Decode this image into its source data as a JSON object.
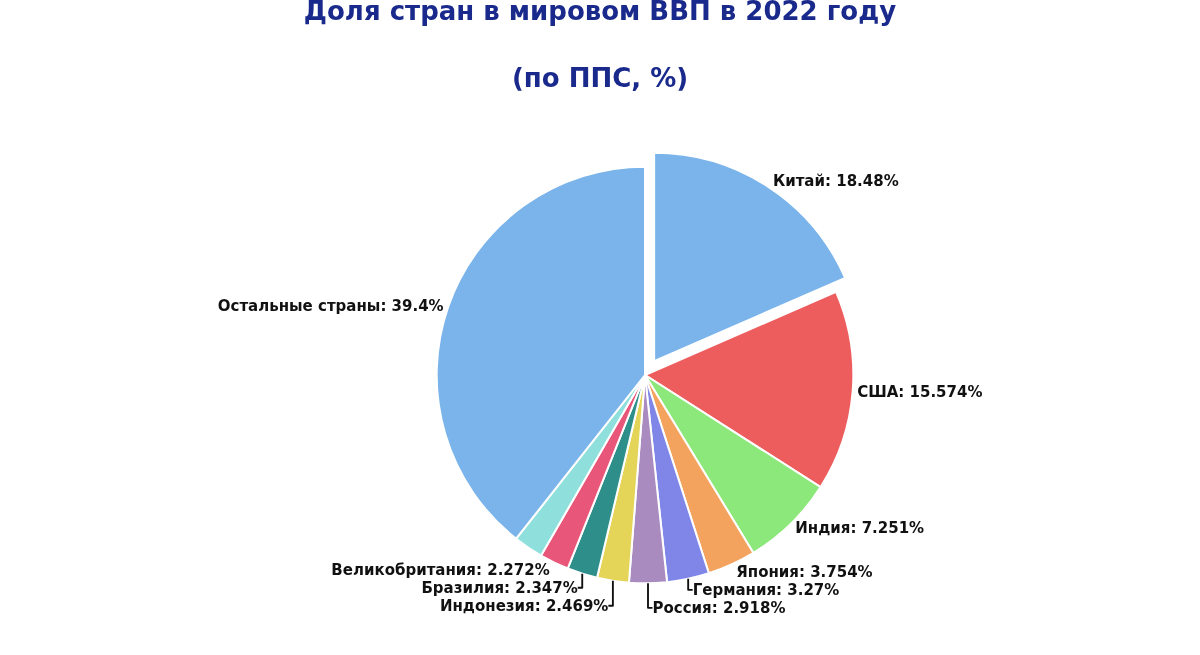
{
  "chart_data": {
    "type": "pie",
    "title": "Доля стран в мировом ВВП в 2022 году",
    "subtitle": "(по ППС, %)",
    "categories": [
      "Китай",
      "США",
      "Индия",
      "Япония",
      "Германия",
      "Россия",
      "Индонезия",
      "Бразилия",
      "Великобритания",
      null,
      "Остальные страны"
    ],
    "values": [
      18.48,
      15.574,
      7.251,
      3.754,
      3.27,
      2.918,
      2.469,
      2.347,
      2.272,
      2.3,
      39.4
    ],
    "value_labels": [
      "18.48%",
      "15.574%",
      "7.251%",
      "3.754%",
      "3.27%",
      "2.918%",
      "2.469%",
      "2.347%",
      "2.272%",
      null,
      "39.4%"
    ],
    "colors": [
      "#7ab4ea",
      "#ee5d5d",
      "#8ce87a",
      "#f4a35f",
      "#7f86e8",
      "#a98bc0",
      "#e4d457",
      "#2e8f8a",
      "#e8567a",
      "#8fe0dc",
      "#7ab4ea"
    ],
    "legend": false
  }
}
